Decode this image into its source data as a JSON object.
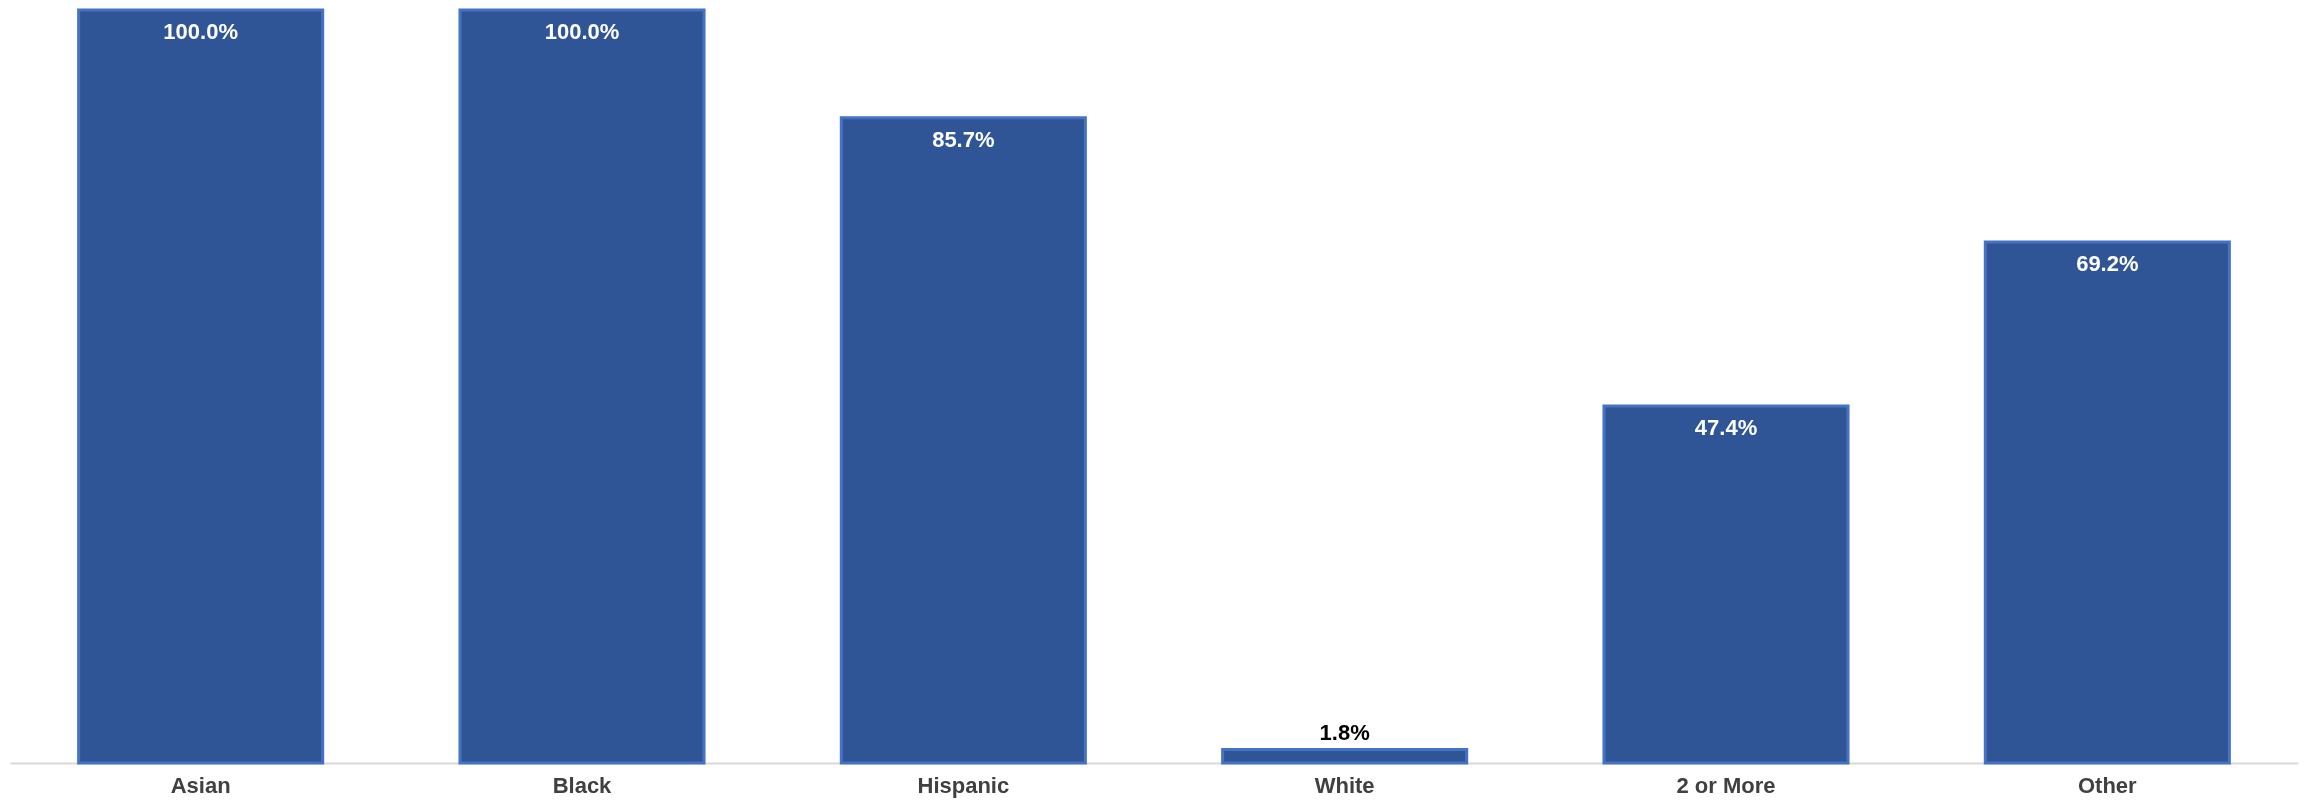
{
  "chart_data": {
    "type": "bar",
    "categories": [
      "Asian",
      "Black",
      "Hispanic",
      "White",
      "2 or More",
      "Other"
    ],
    "values": [
      100.0,
      100.0,
      85.7,
      1.8,
      47.4,
      69.2
    ],
    "value_labels": [
      "100.0%",
      "100.0%",
      "85.7%",
      "1.8%",
      "47.4%",
      "69.2%"
    ],
    "color": "#2f5597",
    "ylim": [
      0,
      100
    ],
    "grid": false
  }
}
